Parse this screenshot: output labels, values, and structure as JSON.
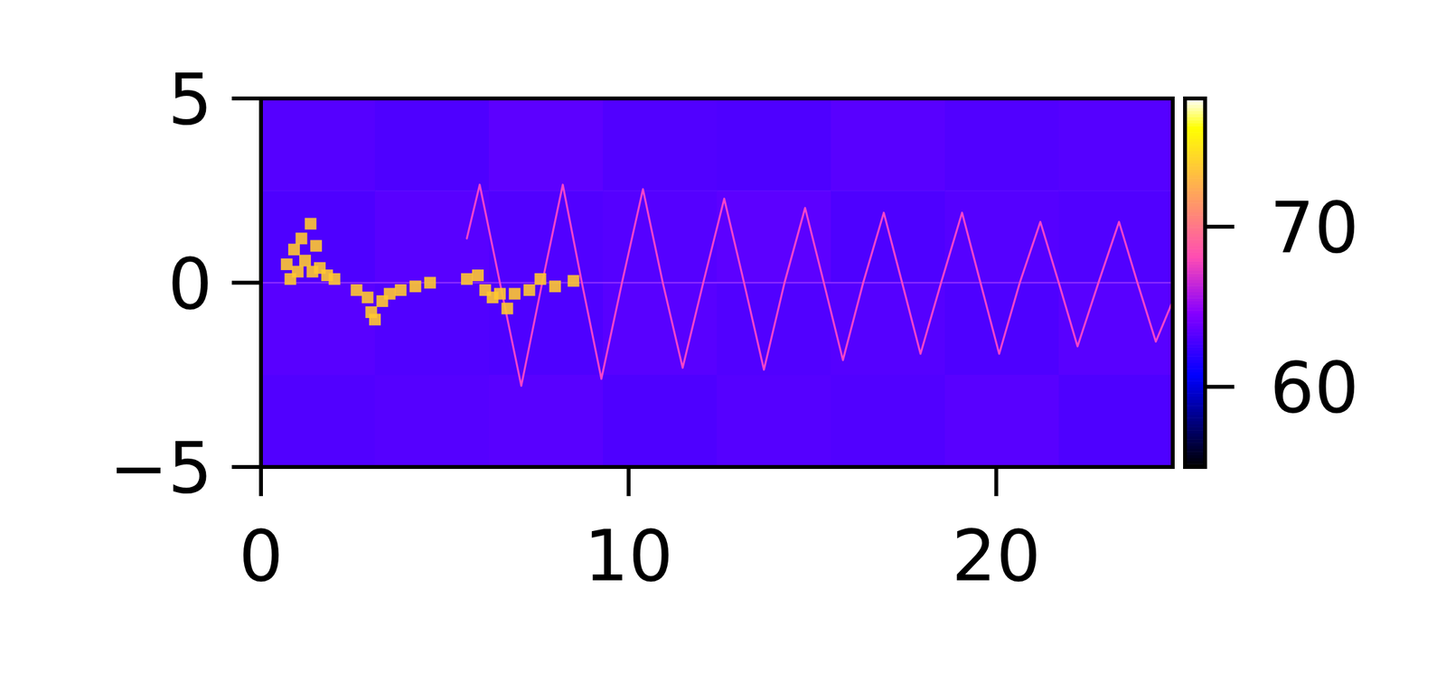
{
  "chart_data": {
    "type": "heatmap",
    "xlim": [
      0,
      24.8
    ],
    "ylim": [
      -5,
      5
    ],
    "xticks": [
      0,
      10,
      20
    ],
    "yticks": [
      {
        "value": -5,
        "label": "−5"
      },
      0,
      5
    ],
    "cells": [
      [
        63.2,
        63.0,
        63.4,
        63.1,
        63.0,
        63.3,
        63.1,
        63.2
      ],
      [
        63.0,
        63.3,
        63.1,
        63.2,
        63.4,
        63.0,
        63.2,
        63.1
      ],
      [
        63.3,
        63.1,
        63.0,
        63.3,
        63.1,
        63.2,
        63.0,
        63.3
      ],
      [
        63.1,
        63.2,
        63.3,
        63.0,
        63.2,
        63.1,
        63.3,
        63.0
      ]
    ],
    "colorbar": {
      "range": [
        55,
        78
      ],
      "ticks": [
        60,
        70
      ]
    },
    "series": [
      {
        "type": "line",
        "color": "#b048ff",
        "x": [
          0,
          24.8
        ],
        "values": [
          0,
          0
        ]
      },
      {
        "type": "line",
        "color": "#ff48c8",
        "x": [
          5.6,
          5.95,
          6.5,
          7.08,
          7.65,
          8.21,
          8.73,
          9.26,
          9.82,
          10.39,
          10.93,
          11.47,
          12.03,
          12.6,
          13.14,
          13.68,
          14.24,
          14.8,
          15.31,
          15.83,
          16.38,
          16.94,
          17.44,
          17.94,
          18.5,
          19.07,
          19.57,
          20.08,
          20.64,
          21.2,
          21.7,
          22.21,
          22.78,
          23.34,
          23.84,
          24.34,
          24.8
        ],
        "values": [
          1.2,
          2.66,
          0,
          -2.8,
          0,
          2.66,
          0,
          -2.61,
          0,
          2.54,
          0,
          -2.31,
          0,
          2.28,
          0,
          -2.36,
          0,
          2.03,
          0,
          -2.1,
          0,
          1.9,
          0,
          -1.93,
          0,
          1.9,
          0,
          -1.93,
          0,
          1.65,
          0,
          -1.73,
          0,
          1.65,
          0,
          -1.6,
          -0.5
        ]
      },
      {
        "type": "scatter",
        "color": "#ffc830",
        "marker": "square",
        "x": [
          0.7,
          0.8,
          0.9,
          1.0,
          1.1,
          1.2,
          1.35,
          1.4,
          1.5,
          1.6,
          1.8,
          2.0,
          2.6,
          2.9,
          3.0,
          3.1,
          3.3,
          3.5,
          3.8,
          4.2,
          4.6,
          5.6,
          5.9,
          6.1,
          6.3,
          6.5,
          6.7,
          6.9,
          7.3,
          7.6,
          8.0,
          8.5
        ],
        "values": [
          0.5,
          0.1,
          0.9,
          0.3,
          1.2,
          0.6,
          1.6,
          0.3,
          1.0,
          0.4,
          0.2,
          0.1,
          -0.2,
          -0.4,
          -0.8,
          -1.0,
          -0.5,
          -0.3,
          -0.2,
          -0.1,
          0.0,
          0.1,
          0.2,
          -0.2,
          -0.4,
          -0.3,
          -0.7,
          -0.3,
          -0.2,
          0.1,
          -0.1,
          0.05
        ]
      }
    ]
  }
}
